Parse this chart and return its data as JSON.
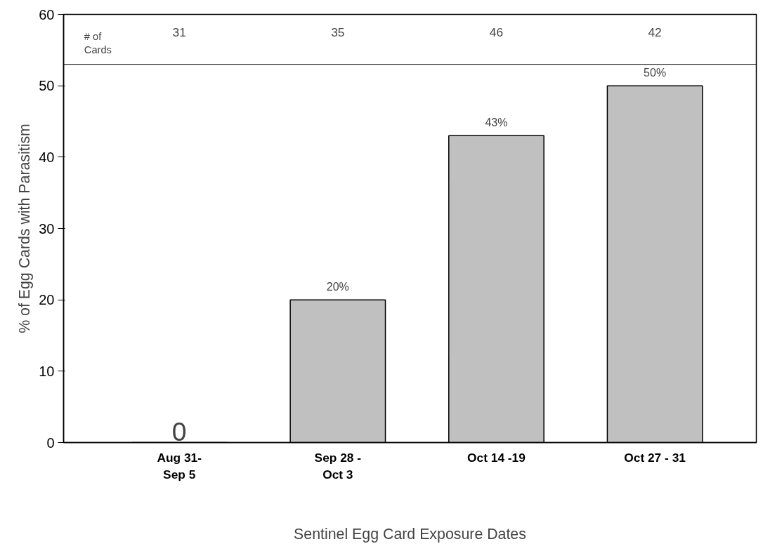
{
  "chart_data": {
    "type": "bar",
    "xlabel": "Sentinel Egg Card Exposure Dates",
    "ylabel": "% of Egg Cards with Parasitism",
    "categories": [
      "Aug 31-\nSep 5",
      "Sep 28 -\nOct 3",
      "Oct 14 -19",
      "Oct 27 - 31"
    ],
    "values": [
      0,
      20,
      43,
      50
    ],
    "color": "#c0c0c0",
    "value_labels": [
      "0",
      "20%",
      "43%",
      "50%"
    ],
    "ylim": [
      0,
      60
    ],
    "yticks": [
      0,
      10,
      20,
      30,
      40,
      50,
      60
    ],
    "grid": false,
    "ref_lines": [
      {
        "axis": "y",
        "value": 53,
        "color": "#000000"
      }
    ],
    "annotations": [
      "# of\nCards",
      "31",
      "35",
      "46",
      "42"
    ]
  }
}
